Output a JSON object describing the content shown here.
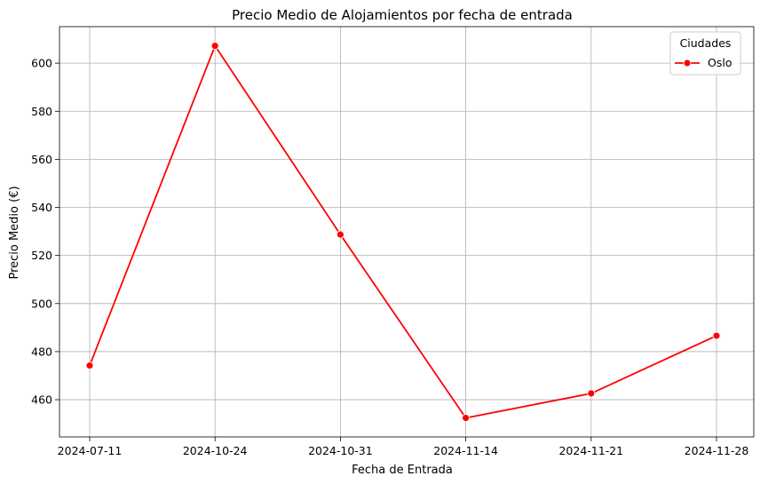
{
  "chart_data": {
    "type": "line",
    "title": "Precio Medio de Alojamientos por fecha de entrada",
    "xlabel": "Fecha de Entrada",
    "ylabel": "Precio Medio (€)",
    "categories": [
      "2024-07-11",
      "2024-10-24",
      "2024-10-31",
      "2024-11-14",
      "2024-11-21",
      "2024-11-28"
    ],
    "series": [
      {
        "name": "Oslo",
        "color": "#ff0000",
        "values": [
          474.2,
          607.2,
          528.7,
          452.4,
          462.6,
          486.6
        ]
      }
    ],
    "ylim": [
      444.5,
      615.2
    ],
    "yticks": [
      460,
      480,
      500,
      520,
      540,
      560,
      580,
      600
    ],
    "grid": true,
    "legend": {
      "title": "Ciudades",
      "placement": "top-right"
    }
  }
}
